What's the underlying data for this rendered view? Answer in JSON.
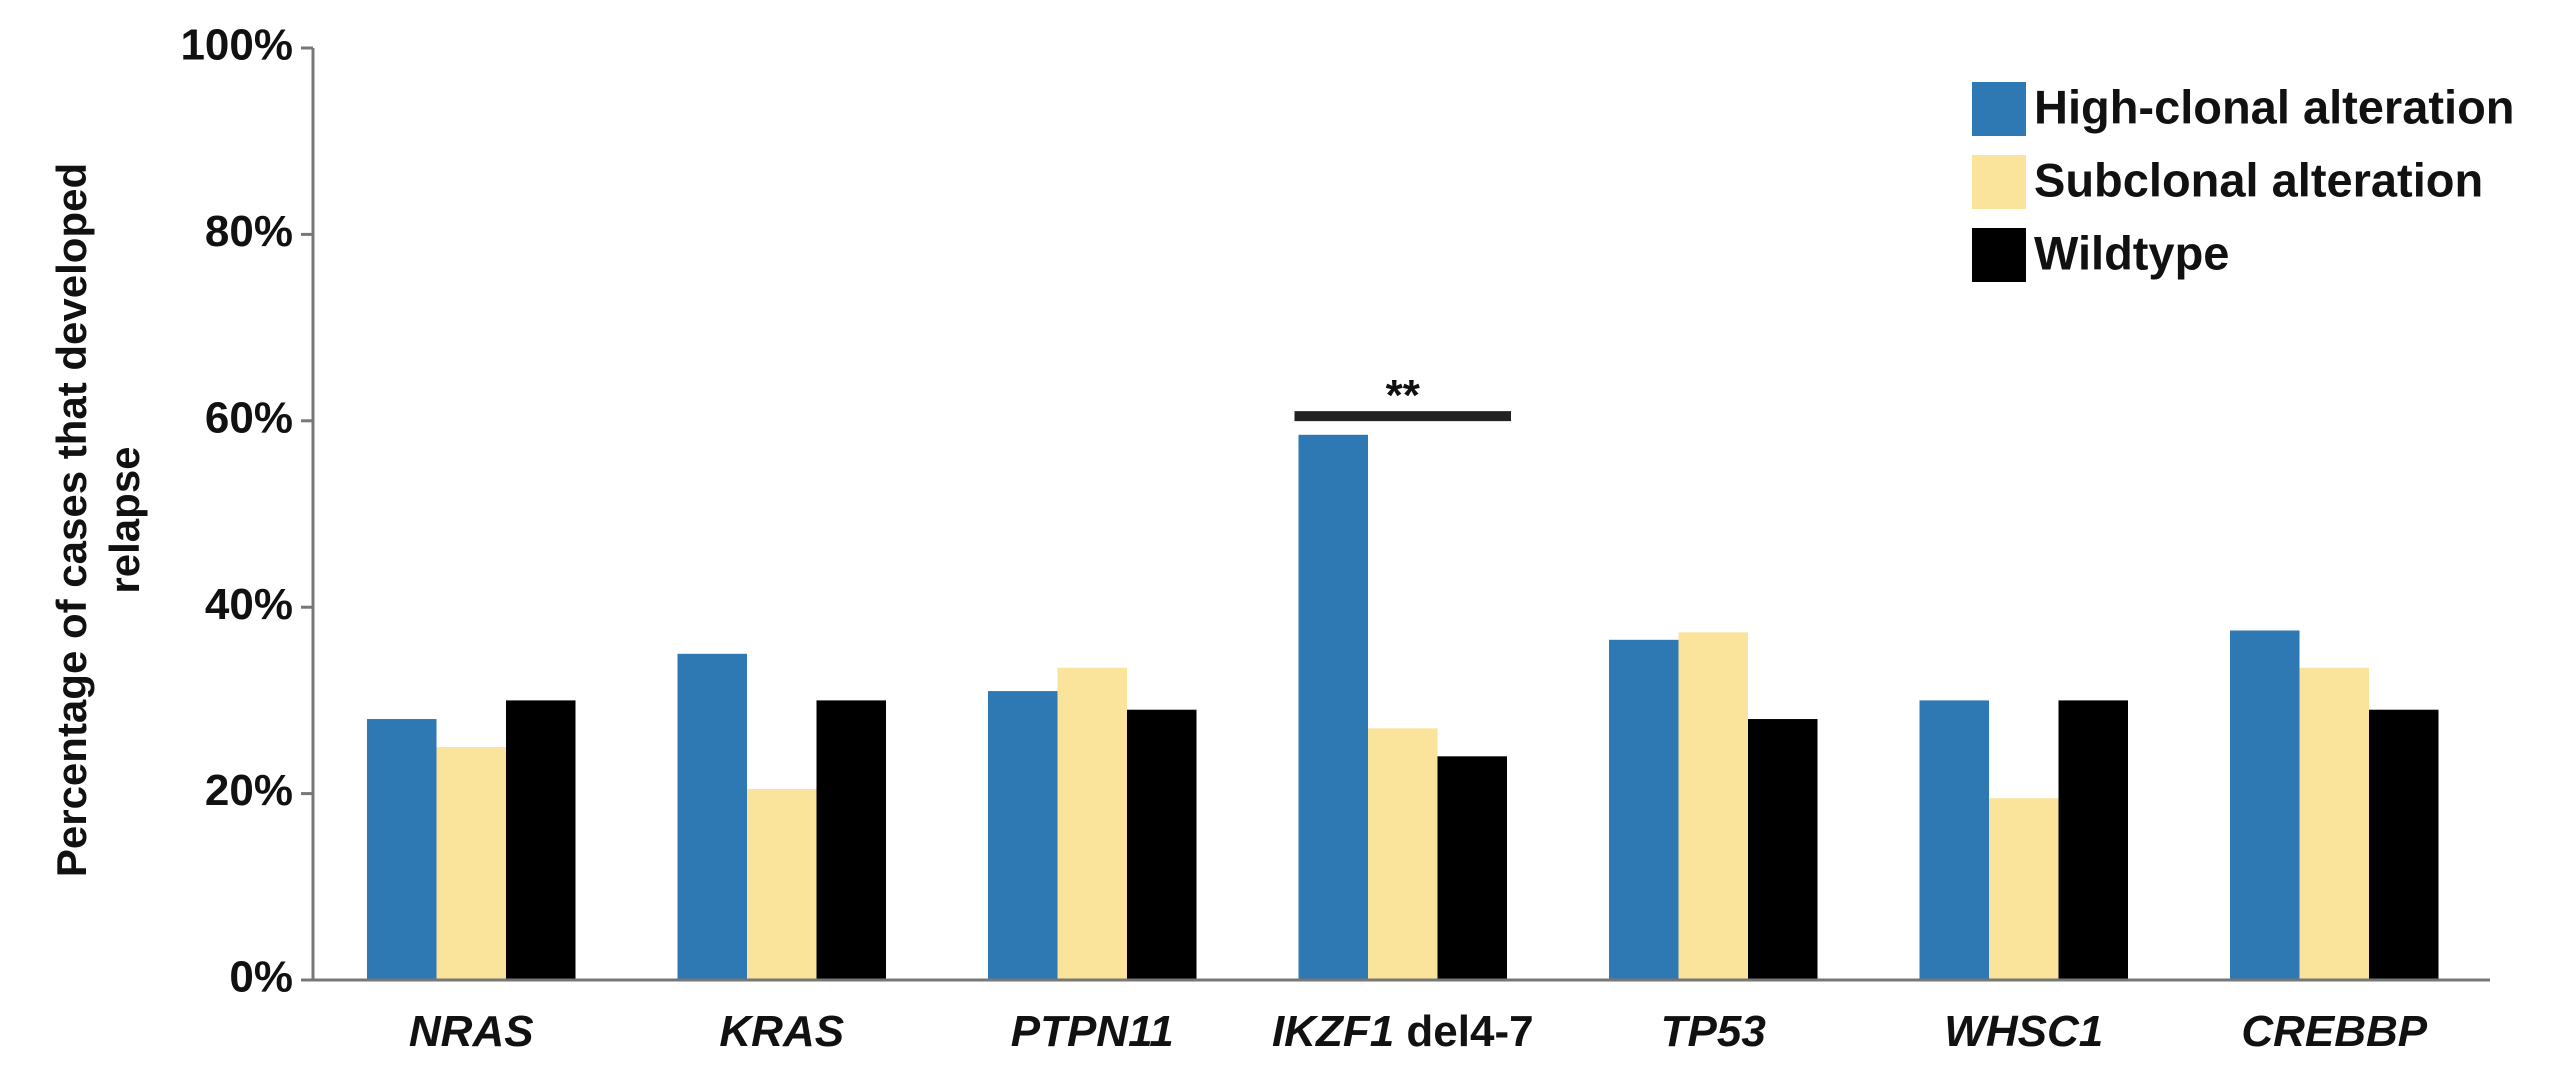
{
  "chart_data": {
    "type": "bar",
    "title": "",
    "ylabel_lines": [
      "Percentage of cases that developed",
      "relapse"
    ],
    "ylim": [
      0,
      100
    ],
    "yticks": [
      0,
      20,
      40,
      60,
      80,
      100
    ],
    "ytick_suffix": "%",
    "grid": false,
    "legend_position": "top-right",
    "categories": [
      {
        "italic": "NRAS",
        "plain": ""
      },
      {
        "italic": "KRAS",
        "plain": ""
      },
      {
        "italic": "PTPN11",
        "plain": ""
      },
      {
        "italic": "IKZF1",
        "plain": " del4-7"
      },
      {
        "italic": "TP53",
        "plain": ""
      },
      {
        "italic": "WHSC1",
        "plain": ""
      },
      {
        "italic": "CREBBP",
        "plain": ""
      }
    ],
    "series": [
      {
        "name": "High-clonal alteration",
        "color": "#2e78b4",
        "values": [
          28,
          35,
          31,
          58.5,
          36.5,
          30,
          37.5
        ]
      },
      {
        "name": "Subclonal alteration",
        "color": "#fae39a",
        "values": [
          25,
          20.5,
          33.5,
          27,
          37.3,
          19.5,
          33.5
        ]
      },
      {
        "name": "Wildtype",
        "color": "#000000",
        "values": [
          30,
          30,
          29,
          24,
          28,
          30,
          29
        ]
      }
    ],
    "annotations": [
      {
        "text": "**",
        "category_index": 3,
        "y": 60.5
      }
    ]
  }
}
